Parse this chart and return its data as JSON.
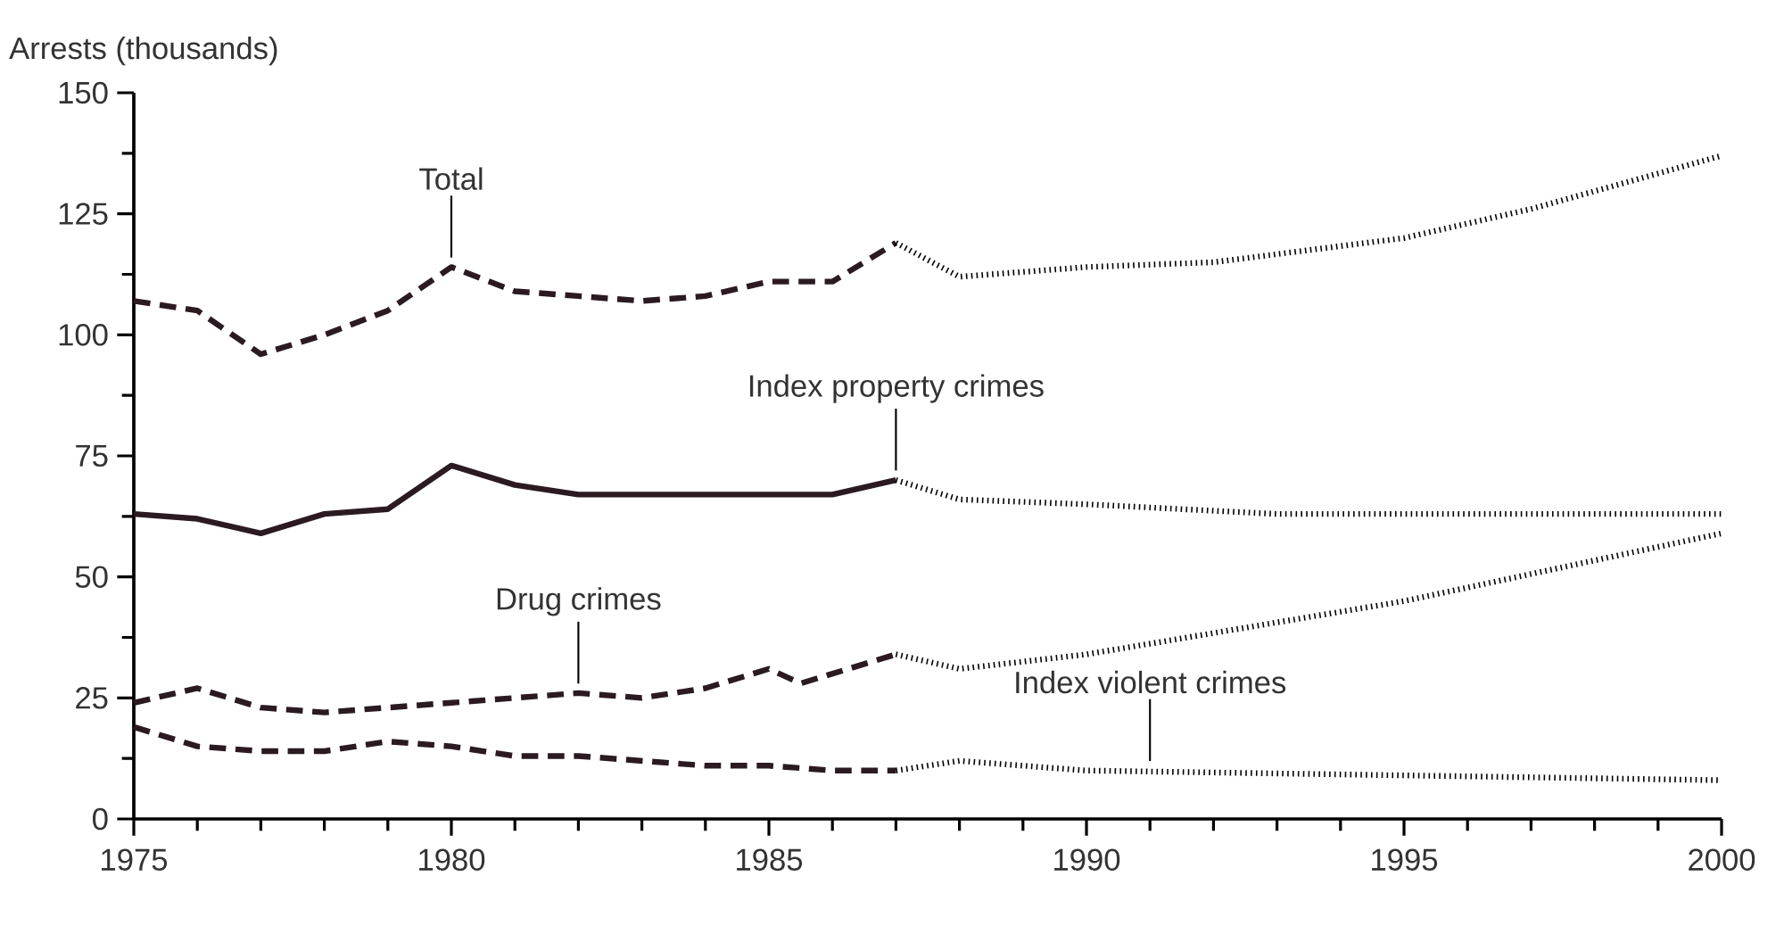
{
  "chart_data": {
    "type": "line",
    "ylabel": "Arrests (thousands)",
    "xlim": [
      1975,
      2000
    ],
    "xticks": [
      1975,
      1980,
      1985,
      1990,
      1995,
      2000
    ],
    "ylim": [
      0,
      150
    ],
    "yticks": [
      0,
      25,
      50,
      75,
      100,
      125,
      150
    ],
    "grid": false,
    "marker": "none",
    "series": [
      {
        "color": "#2b1a22",
        "line_style": "dashed",
        "x": [
          1975,
          1976,
          1977,
          1978,
          1979,
          1980,
          1981,
          1982,
          1983,
          1984,
          1985,
          1986,
          1987
        ],
        "values": [
          107,
          105,
          96,
          100,
          105,
          114,
          109,
          108,
          107,
          108,
          111,
          111,
          119
        ]
      },
      {
        "color": "#000000",
        "line_style": "dotted",
        "x": [
          1987,
          1988,
          1990,
          1992,
          1995,
          1997,
          2000
        ],
        "values": [
          119,
          112,
          114,
          115,
          120,
          126,
          137
        ]
      },
      {
        "color": "#2b1a22",
        "line_style": "solid",
        "x": [
          1975,
          1976,
          1977,
          1978,
          1979,
          1980,
          1981,
          1982,
          1983,
          1984,
          1985,
          1986,
          1987
        ],
        "values": [
          63,
          62,
          59,
          63,
          64,
          73,
          69,
          67,
          67,
          67,
          67,
          67,
          70
        ]
      },
      {
        "color": "#000000",
        "line_style": "dotted",
        "x": [
          1987,
          1988,
          1990,
          1993,
          1995,
          2000
        ],
        "values": [
          70,
          66,
          65,
          63,
          63,
          63
        ]
      },
      {
        "color": "#2b1a22",
        "line_style": "dashed",
        "x": [
          1975,
          1976,
          1977,
          1978,
          1979,
          1980,
          1981,
          1982,
          1983,
          1984,
          1985,
          1985.5,
          1987
        ],
        "values": [
          24,
          27,
          23,
          22,
          23,
          24,
          25,
          26,
          25,
          27,
          31,
          28,
          34
        ]
      },
      {
        "color": "#000000",
        "line_style": "dotted",
        "x": [
          1987,
          1988,
          1990,
          1995,
          2000
        ],
        "values": [
          34,
          31,
          34,
          45,
          59
        ]
      },
      {
        "color": "#2b1a22",
        "line_style": "dashed",
        "x": [
          1975,
          1976,
          1977,
          1978,
          1979,
          1980,
          1981,
          1982,
          1983,
          1984,
          1985,
          1986,
          1987
        ],
        "values": [
          19,
          15,
          14,
          14,
          16,
          15,
          13,
          13,
          12,
          11,
          11,
          10,
          10
        ]
      },
      {
        "color": "#000000",
        "line_style": "dotted",
        "x": [
          1987,
          1988,
          1989,
          1990,
          1995,
          2000
        ],
        "values": [
          10,
          12,
          11,
          10,
          9,
          8
        ]
      }
    ],
    "annotations": [
      {
        "text": "Total",
        "x": 1980,
        "y": 114
      },
      {
        "text": "Index property crimes",
        "x": 1987,
        "y": 70
      },
      {
        "text": "Drug crimes",
        "x": 1982,
        "y": 26
      },
      {
        "text": "Index violent crimes",
        "x": 1991,
        "y": 10
      }
    ]
  }
}
